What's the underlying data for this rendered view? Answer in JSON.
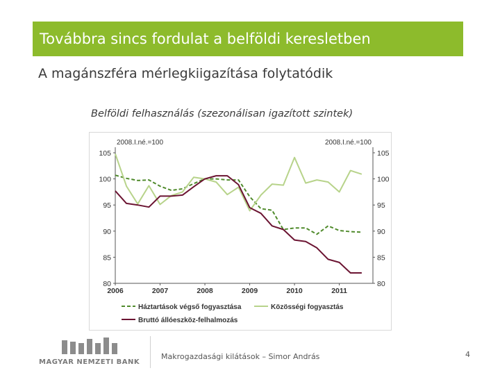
{
  "slide": {
    "title": "Továbbra sincs fordulat a belföldi keresletben",
    "subtitle": "A magánszféra mérlegkiigazítása folytatódik",
    "chart_caption": "Belföldi felhasználás (szezonálisan igazított szintek)",
    "footer_center": "Makrogazdasági kilátások – Simor András",
    "page_number": "4",
    "logo_text": "MAGYAR NEMZETI BANK"
  },
  "colors": {
    "title_bar": "#8dbb2c",
    "household": "#4f8a2b",
    "community": "#b7d38a",
    "investment": "#6b1432"
  },
  "chart_data": {
    "type": "line",
    "title": "Belföldi felhasználás (szezonálisan igazított szintek)",
    "left_axis_note": "2008.I.né.=100",
    "right_axis_note": "2008.I.né.=100",
    "ylim": [
      80,
      105
    ],
    "y_ticks": [
      80,
      85,
      90,
      95,
      100,
      105
    ],
    "x_tick_labels": [
      "2006",
      "2007",
      "2008",
      "2009",
      "2010",
      "2011"
    ],
    "x_range": [
      2006,
      2011.75
    ],
    "series": [
      {
        "name": "Háztartások végső fogyasztása",
        "style": "dashed",
        "x": [
          2006.0,
          2006.25,
          2006.5,
          2006.75,
          2007.0,
          2007.25,
          2007.5,
          2007.75,
          2008.0,
          2008.25,
          2008.5,
          2008.75,
          2009.0,
          2009.25,
          2009.5,
          2009.75,
          2010.0,
          2010.25,
          2010.5,
          2010.75,
          2011.0,
          2011.25,
          2011.5
        ],
        "values": [
          100.7,
          100.1,
          99.7,
          99.8,
          98.6,
          97.8,
          98.1,
          99.1,
          100.0,
          100.0,
          99.8,
          99.8,
          96.6,
          94.3,
          94.0,
          90.3,
          90.6,
          90.6,
          89.4,
          91.0,
          90.1,
          89.9,
          89.8
        ]
      },
      {
        "name": "Közösségi fogyasztás",
        "style": "solid",
        "x": [
          2006.0,
          2006.25,
          2006.5,
          2006.75,
          2007.0,
          2007.25,
          2007.5,
          2007.75,
          2008.0,
          2008.25,
          2008.5,
          2008.75,
          2009.0,
          2009.25,
          2009.5,
          2009.75,
          2010.0,
          2010.25,
          2010.5,
          2010.75,
          2011.0,
          2011.25,
          2011.5
        ],
        "values": [
          104.8,
          98.6,
          95.2,
          98.7,
          95.1,
          96.8,
          97.5,
          100.3,
          100.0,
          99.4,
          97.0,
          98.4,
          93.9,
          96.9,
          99.0,
          98.8,
          104.1,
          99.2,
          99.8,
          99.4,
          97.5,
          101.6,
          100.9
        ]
      },
      {
        "name": "Bruttó állóeszköz-felhalmozás",
        "style": "solid",
        "x": [
          2006.0,
          2006.25,
          2006.5,
          2006.75,
          2007.0,
          2007.25,
          2007.5,
          2007.75,
          2008.0,
          2008.25,
          2008.5,
          2008.75,
          2009.0,
          2009.25,
          2009.5,
          2009.75,
          2010.0,
          2010.25,
          2010.5,
          2010.75,
          2011.0,
          2011.25,
          2011.5
        ],
        "values": [
          97.7,
          95.3,
          95.0,
          94.6,
          96.7,
          96.7,
          96.9,
          98.5,
          100.0,
          100.6,
          100.6,
          98.9,
          94.5,
          93.4,
          91.0,
          90.3,
          88.3,
          88.0,
          86.8,
          84.6,
          84.0,
          82.0,
          82.0
        ]
      }
    ],
    "legend": {
      "placement": "bottom",
      "items": [
        "Háztartások végső fogyasztása",
        "Közösségi fogyasztás",
        "Bruttó állóeszköz-felhalmozás"
      ]
    }
  }
}
